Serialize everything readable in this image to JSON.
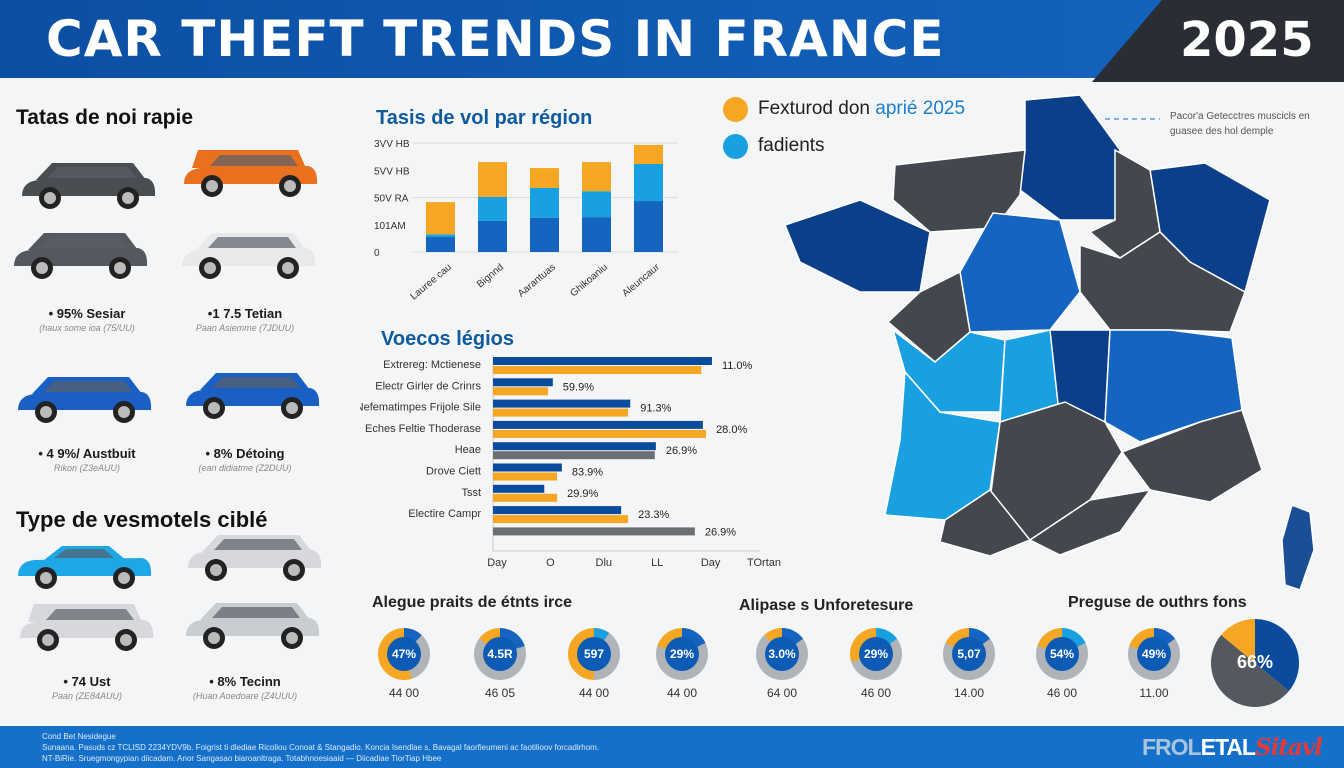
{
  "header": {
    "title": "CAR THEFT TRENDS IN FRANCE",
    "year": "2025"
  },
  "colors": {
    "navy": "#0b3f8a",
    "blue": "#1565c0",
    "light_blue": "#18a0e0",
    "orange": "#f5a623",
    "gray": "#44474d"
  },
  "left": {
    "heading1": "Tatas de noi rapie",
    "cars_top": [
      {
        "color": "#4a4d52",
        "type": "suv"
      },
      {
        "color": "#e8701e",
        "type": "van"
      },
      {
        "color": "#55585e",
        "type": "suv"
      },
      {
        "color": "#e8e9eb",
        "type": "suv"
      }
    ],
    "labels_top": [
      {
        "label": "• 95% Sesiar",
        "sub": "(haux some ioa (75/UU)"
      },
      {
        "label": "•1 7.5 Tetian",
        "sub": "Paan Asiemme (7JDUU)"
      }
    ],
    "cars_mid": [
      {
        "color": "#1a5fc4",
        "type": "suv"
      },
      {
        "color": "#1a5fc4",
        "type": "hatch"
      }
    ],
    "labels_mid": [
      {
        "label": "• 4 9%/ Austbuit",
        "sub": "Rikon (Z3eAUU)"
      },
      {
        "label": "• 8% Détoing",
        "sub": "(ean didiatme (Z2DUU)"
      }
    ],
    "heading2": "Type de vesmotels ciblé",
    "cars_bottom": [
      {
        "color": "#1ea7e6",
        "type": "sedan"
      },
      {
        "color": "#d6d8db",
        "type": "suv"
      },
      {
        "color": "#d6d8db",
        "type": "van"
      },
      {
        "color": "#c9ccd0",
        "type": "suv"
      }
    ],
    "labels_bottom": [
      {
        "label": "• 74 Ust",
        "sub": "Paan (ZE84AUU)"
      },
      {
        "label": "• 8% Tecinn",
        "sub": "(Huan Aoedoare (Z4UUU)"
      }
    ]
  },
  "chart_data": [
    {
      "type": "bar",
      "stacked": true,
      "title": "Tasis de vol par région",
      "categories": [
        "Lauree cau",
        "Bignnd",
        "Aarantuas",
        "Ghikoaniu",
        "Aleuncaur"
      ],
      "yticks": [
        "0",
        "101AM",
        "50V RA",
        "5VV HB",
        "3VV HB"
      ],
      "ylim": [
        0,
        4
      ],
      "grid": true,
      "series": [
        {
          "color": "#1565c0",
          "values": [
            0.55,
            1.14,
            1.25,
            1.28,
            1.87
          ]
        },
        {
          "color": "#18a0e0",
          "values": [
            0.1,
            0.88,
            1.1,
            0.95,
            1.36
          ]
        },
        {
          "color": "#f5a623",
          "values": [
            1.18,
            1.28,
            0.73,
            1.07,
            0.7
          ]
        }
      ]
    },
    {
      "type": "bar",
      "orientation": "horizontal",
      "title": "Voecos légios",
      "xticks": [
        "Day",
        "O",
        "Dlu",
        "LL",
        "Day",
        "TOrtan"
      ],
      "xlim": [
        0,
        5
      ],
      "rows": [
        {
          "label": "Extrereg: Mctienese",
          "bars": [
            {
              "c": "#0b4b9c",
              "v": 4.1
            },
            {
              "c": "#f5a623",
              "v": 3.9
            }
          ],
          "value_label": "11.0%"
        },
        {
          "label": "Electr Girler de Crinrs",
          "bars": [
            {
              "c": "#0b4b9c",
              "v": 1.12
            },
            {
              "c": "#f5a623",
              "v": 1.03
            }
          ],
          "value_label": "59.9%"
        },
        {
          "label": "Nefematimpes Frijole Sile",
          "bars": [
            {
              "c": "#0b4b9c",
              "v": 2.57
            },
            {
              "c": "#f5a623",
              "v": 2.53
            }
          ],
          "value_label": "91.3%"
        },
        {
          "label": "Eches Feltie Thoderase",
          "bars": [
            {
              "c": "#0b4b9c",
              "v": 3.93
            },
            {
              "c": "#f5a623",
              "v": 3.99
            }
          ],
          "value_label": "28.0%"
        },
        {
          "label": "Heae",
          "bars": [
            {
              "c": "#0b4b9c",
              "v": 3.05
            },
            {
              "c": "#6b6e73",
              "v": 3.03
            }
          ],
          "value_label": "26.9%"
        },
        {
          "label": "Drove Ciett",
          "bars": [
            {
              "c": "#0b4b9c",
              "v": 1.29
            },
            {
              "c": "#f5a623",
              "v": 1.2
            }
          ],
          "value_label": "83.9%"
        },
        {
          "label": "Tsst",
          "bars": [
            {
              "c": "#0b4b9c",
              "v": 0.96
            },
            {
              "c": "#f5a623",
              "v": 1.2
            }
          ],
          "value_label": "29.9%"
        },
        {
          "label": "Electire Campr",
          "bars": [
            {
              "c": "#0b4b9c",
              "v": 2.4
            },
            {
              "c": "#f5a623",
              "v": 2.53
            }
          ],
          "value_label": "23.3%"
        },
        {
          "label": "",
          "bars": [
            {
              "c": "#6b6e73",
              "v": 3.78
            }
          ],
          "value_label": "26.9%"
        }
      ]
    },
    {
      "type": "pie",
      "title": "Preguse de outhrs fons",
      "center_label": "66%",
      "slices": [
        {
          "color": "#0b4b9c",
          "value": 36
        },
        {
          "color": "#55585e",
          "value": 50
        },
        {
          "color": "#f5a623",
          "value": 14
        }
      ]
    }
  ],
  "legend": {
    "items": [
      {
        "color": "#f5a623",
        "label": "Fexturod don ",
        "accent": "aprié 2025"
      },
      {
        "color": "#18a0e0",
        "label": "fadients"
      }
    ],
    "annotation": [
      "Pacor'a Getecctres muscicls en",
      "guasee des hol demple"
    ]
  },
  "donuts": {
    "heading1": "Alegue praits de étnts irce",
    "heading2": "Alipase s Unforetesure",
    "items": [
      {
        "center": "47%",
        "sub": "44 00",
        "orange": 55,
        "blue": 12,
        "lb": 0
      },
      {
        "center": "4.5R",
        "sub": "46 05",
        "orange": 15,
        "blue": 20,
        "lb": 0
      },
      {
        "center": "597",
        "sub": "44 00",
        "orange": 50,
        "blue": 0,
        "lb": 10
      },
      {
        "center": "29%",
        "sub": "44 00",
        "orange": 20,
        "blue": 18,
        "lb": 0
      },
      {
        "center": "3.0%",
        "sub": "64 00",
        "orange": 12,
        "blue": 15,
        "lb": 0
      },
      {
        "center": "29%",
        "sub": "46 00",
        "orange": 30,
        "blue": 0,
        "lb": 15
      },
      {
        "center": "5,07",
        "sub": "14.00",
        "orange": 18,
        "blue": 15,
        "lb": 0
      },
      {
        "center": "54%",
        "sub": "46 00",
        "orange": 20,
        "blue": 0,
        "lb": 18
      },
      {
        "center": "49%",
        "sub": "11.00",
        "orange": 20,
        "blue": 15,
        "lb": 0
      }
    ]
  },
  "footer": {
    "lines": [
      "Cond Bet Nesidegue",
      "Sunaana. Pasuds cz TCLISD 2234YDV9b. Foigrist ti dlediae Ricoliou Conoat & Stangadio. Koncia Isendlae s, Bavagal faorfieumeni ac faotilioov forcadirhom.",
      "NT-BiRie. Sruegmongypian diicadam. Anor Sangasao biaroanltraga. Totabhnoesiaaid — Diicadiae TiorTiap Hbee"
    ],
    "logo": {
      "part1": "FROL",
      "part2": "ETAL",
      "part3": "Sitavl"
    }
  }
}
